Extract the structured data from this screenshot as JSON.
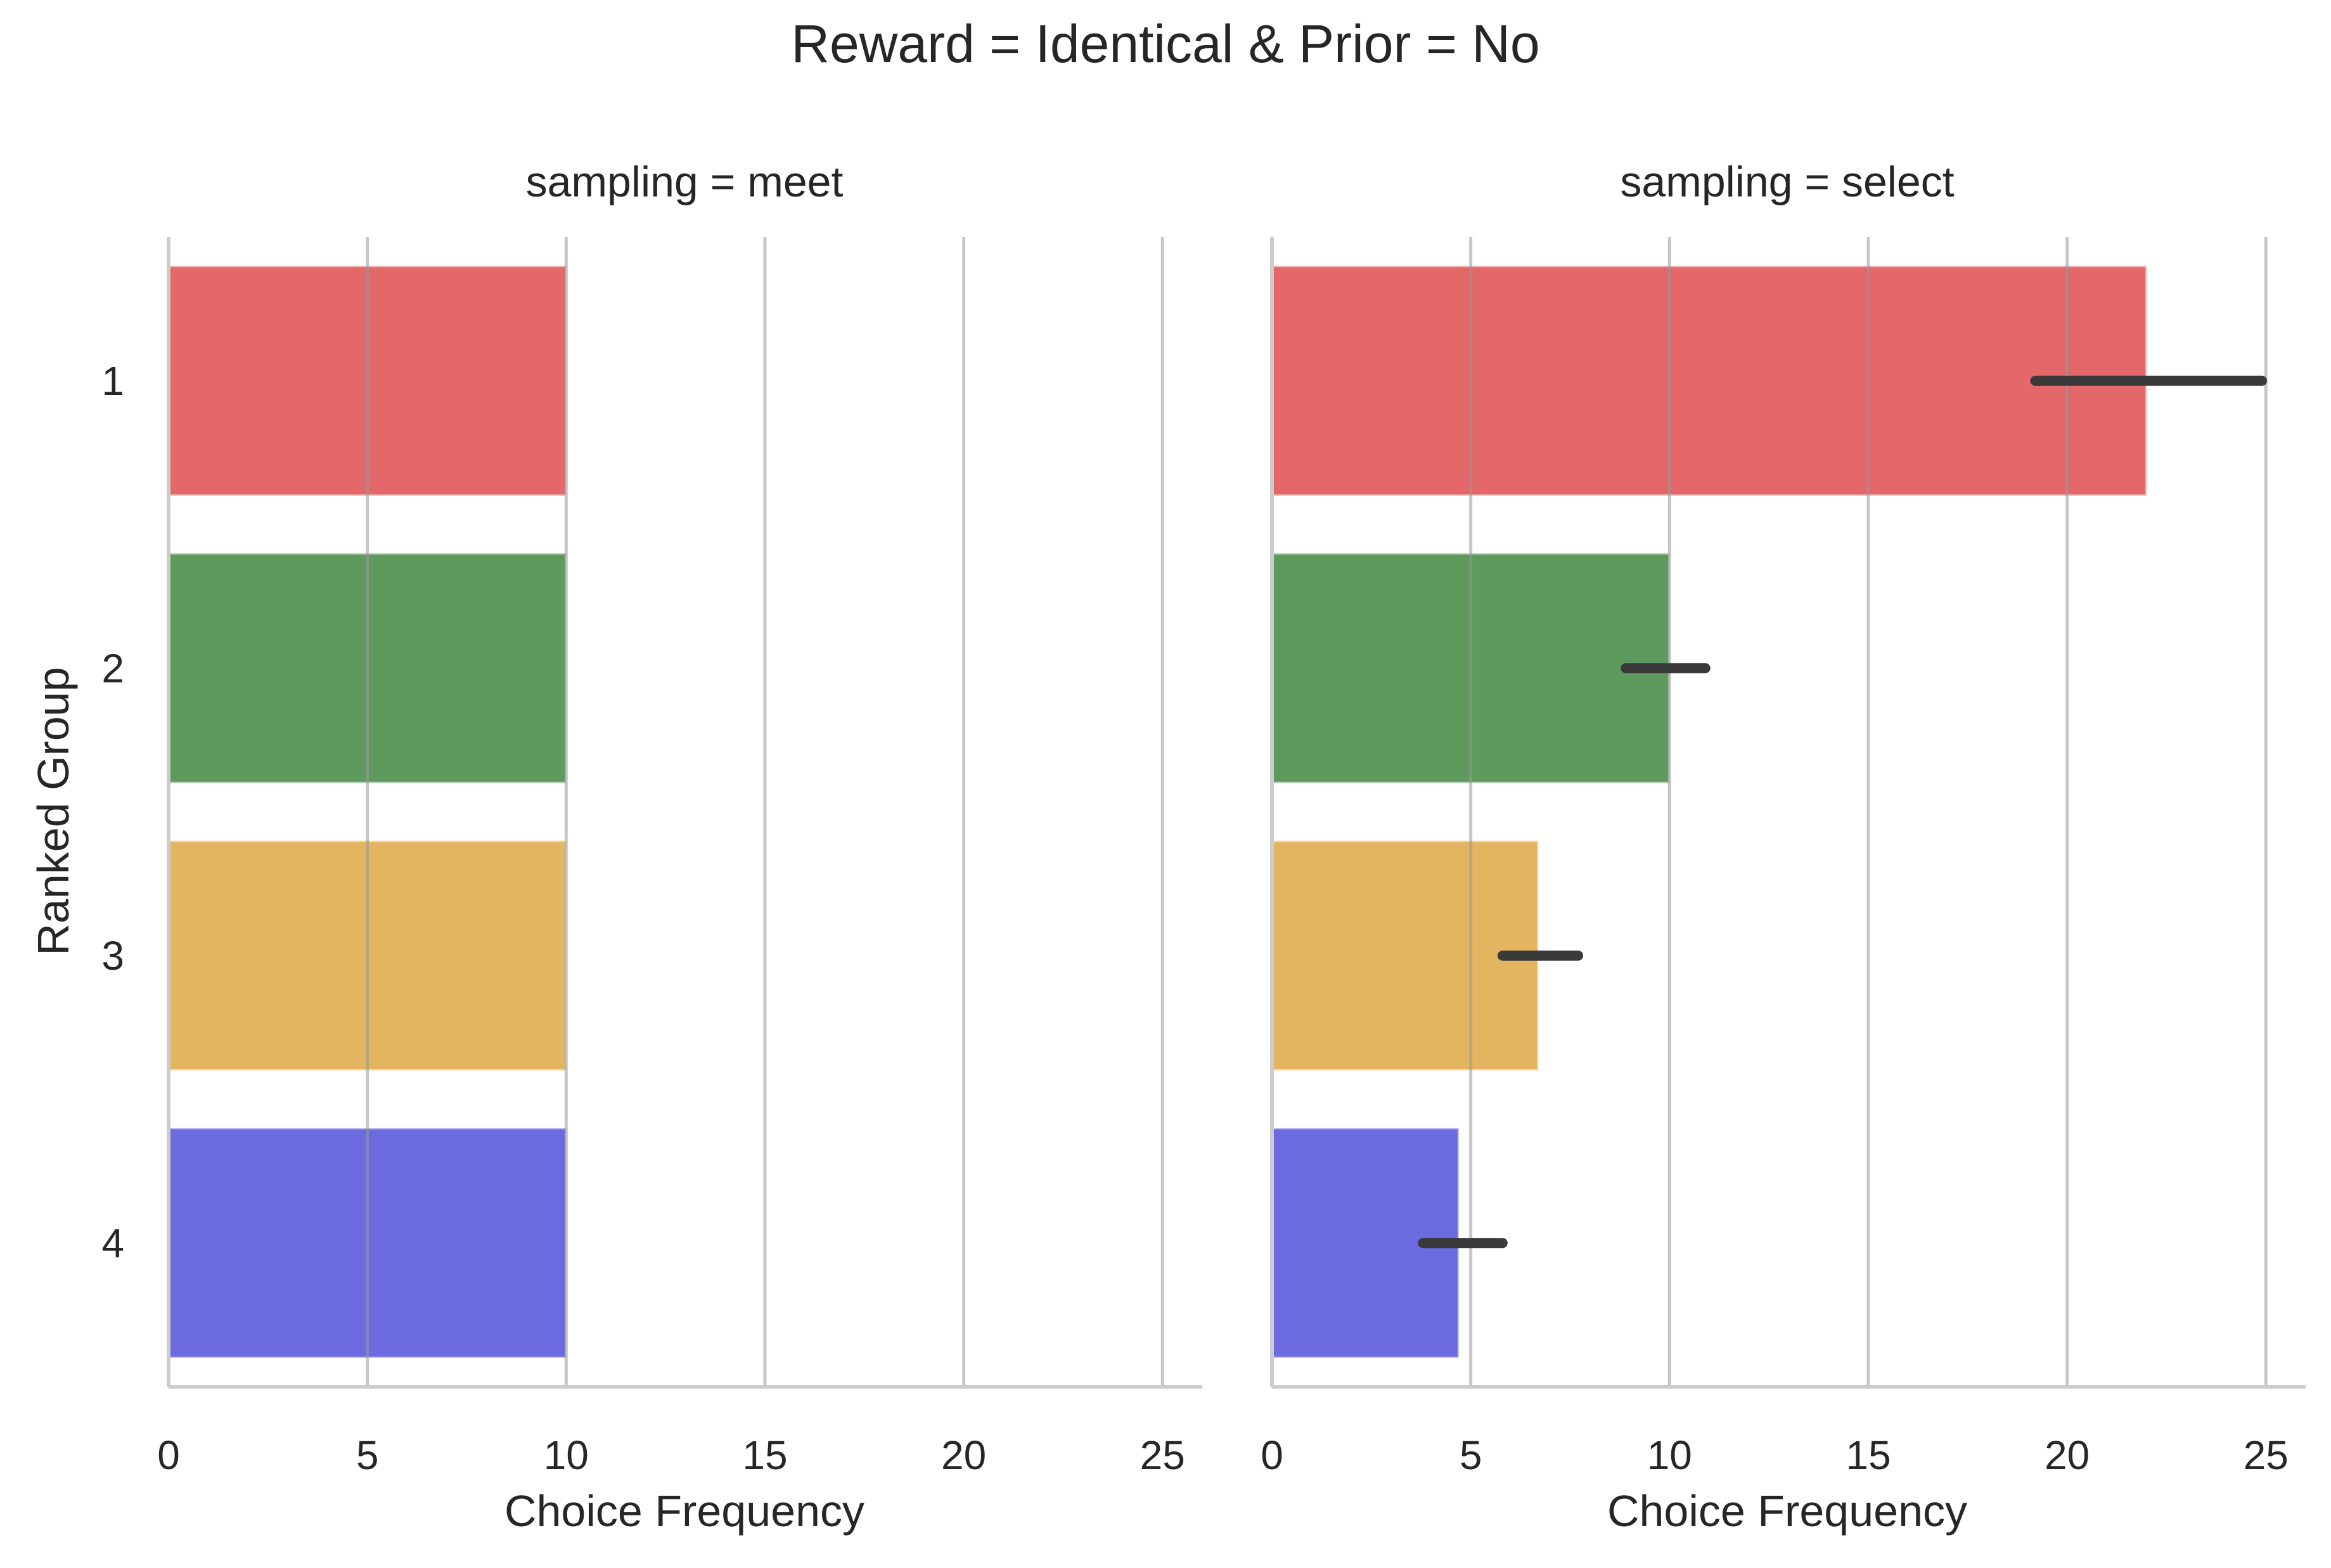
{
  "chart_data": {
    "type": "bar",
    "orientation": "horizontal",
    "title": "Reward = Identical & Prior = No",
    "xlabel": "Choice Frequency",
    "ylabel": "Ranked Group",
    "categories": [
      "1",
      "2",
      "3",
      "4"
    ],
    "category_colors": [
      "#e15759",
      "#4c8f4c",
      "#e0ad4f",
      "#5b5bdc"
    ],
    "xlim": [
      0,
      26
    ],
    "xticks": [
      0,
      5,
      10,
      15,
      20,
      25
    ],
    "grid": "vertical",
    "error_bar_color": "#3a3a3a",
    "panels": [
      {
        "title": "sampling = meet",
        "values": [
          10,
          10,
          10,
          10
        ],
        "ci": [
          null,
          null,
          null,
          null
        ]
      },
      {
        "title": "sampling = select",
        "values": [
          22,
          10,
          6.7,
          4.7
        ],
        "ci": [
          [
            19.2,
            24.9
          ],
          [
            8.9,
            10.9
          ],
          [
            5.8,
            7.7
          ],
          [
            3.8,
            5.8
          ]
        ]
      }
    ]
  }
}
